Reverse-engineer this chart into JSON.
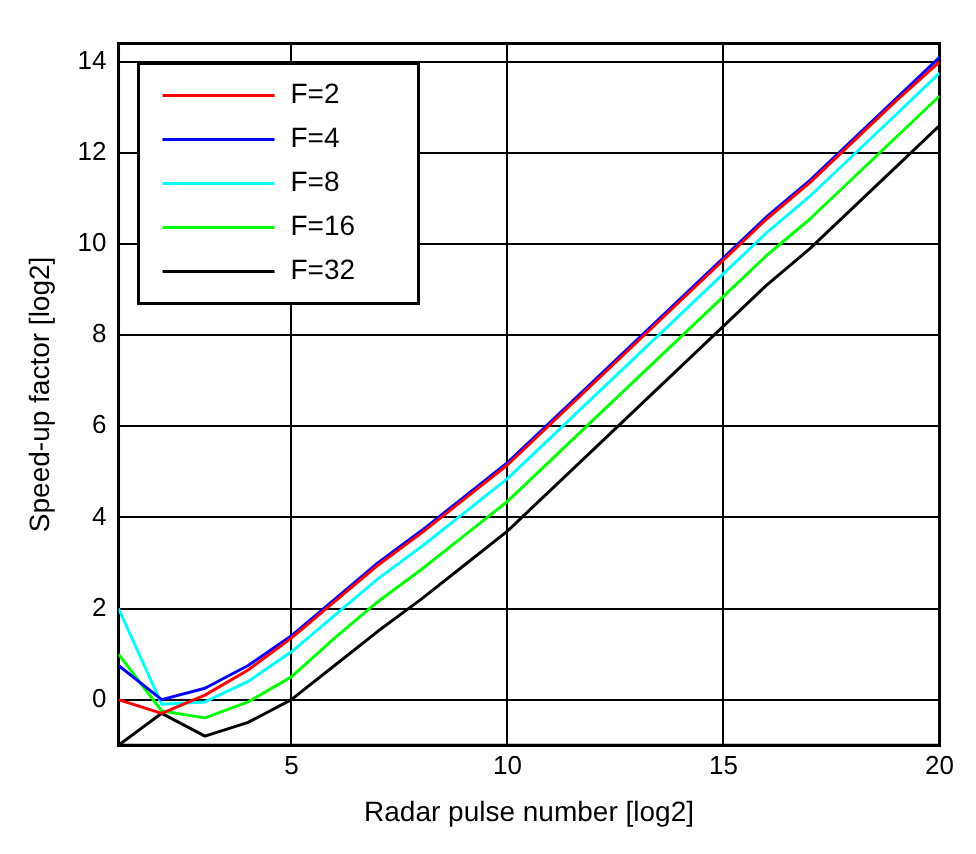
{
  "chart_data": {
    "type": "line",
    "xlabel": "Radar pulse number [log2]",
    "ylabel": "Speed-up factor [log2]",
    "x": [
      1,
      2,
      3,
      4,
      5,
      6,
      7,
      8,
      9,
      10,
      11,
      12,
      13,
      14,
      15,
      16,
      17,
      18,
      19,
      20
    ],
    "series": [
      {
        "name": "F=2",
        "color": "#ff0000",
        "values": [
          0,
          -0.3,
          0.1,
          0.65,
          1.35,
          2.15,
          2.95,
          3.65,
          4.4,
          5.15,
          6.05,
          6.95,
          7.85,
          8.75,
          9.65,
          10.55,
          11.35,
          12.25,
          13.15,
          14.0
        ]
      },
      {
        "name": "F=4",
        "color": "#0000ff",
        "values": [
          0.75,
          0,
          0.25,
          0.75,
          1.4,
          2.2,
          3.0,
          3.7,
          4.45,
          5.2,
          6.1,
          7.0,
          7.9,
          8.8,
          9.7,
          10.6,
          11.4,
          12.3,
          13.2,
          14.1
        ]
      },
      {
        "name": "F=8",
        "color": "#00ffff",
        "values": [
          2.0,
          -0.1,
          -0.05,
          0.4,
          1.05,
          1.85,
          2.65,
          3.35,
          4.1,
          4.85,
          5.75,
          6.65,
          7.55,
          8.45,
          9.35,
          10.25,
          11.05,
          11.95,
          12.85,
          13.75
        ]
      },
      {
        "name": "F=16",
        "color": "#00ff00",
        "values": [
          1.0,
          -0.25,
          -0.4,
          -0.05,
          0.5,
          1.35,
          2.15,
          2.85,
          3.6,
          4.35,
          5.25,
          6.15,
          7.05,
          7.95,
          8.85,
          9.75,
          10.55,
          11.45,
          12.35,
          13.25
        ]
      },
      {
        "name": "F=32",
        "color": "#000000",
        "values": [
          -1.0,
          -0.3,
          -0.8,
          -0.5,
          0,
          0.75,
          1.5,
          2.2,
          2.95,
          3.7,
          4.6,
          5.5,
          6.4,
          7.3,
          8.2,
          9.1,
          9.9,
          10.8,
          11.7,
          12.6
        ]
      }
    ],
    "xlim": [
      1,
      20
    ],
    "ylim": [
      -1,
      14.4
    ],
    "xticks": [
      5,
      10,
      15,
      20
    ],
    "yticks": [
      0,
      2,
      4,
      6,
      8,
      10,
      12,
      14
    ],
    "grid": true,
    "legend": "top left",
    "line_style": "solid",
    "marker": "none"
  }
}
